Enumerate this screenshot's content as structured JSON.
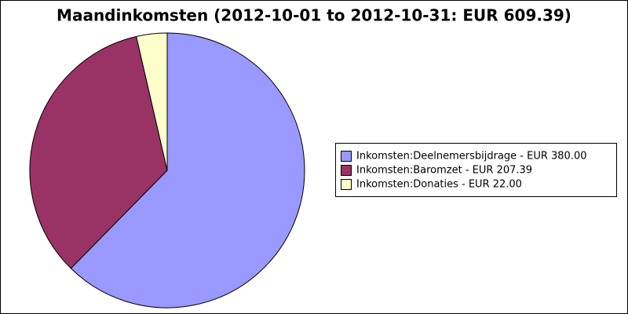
{
  "chart_data": {
    "type": "pie",
    "title": "Maandinkomsten (2012-10-01 to 2012-10-31: EUR 609.39)",
    "categories": [
      "Inkomsten:Deelnemersbijdrage - EUR 380.00",
      "Inkomsten:Baromzet - EUR 207.39",
      "Inkomsten:Donaties - EUR 22.00"
    ],
    "values": [
      380.0,
      207.39,
      22.0
    ],
    "colors": [
      "#9999ff",
      "#993366",
      "#ffffcc"
    ],
    "legend": "right"
  }
}
